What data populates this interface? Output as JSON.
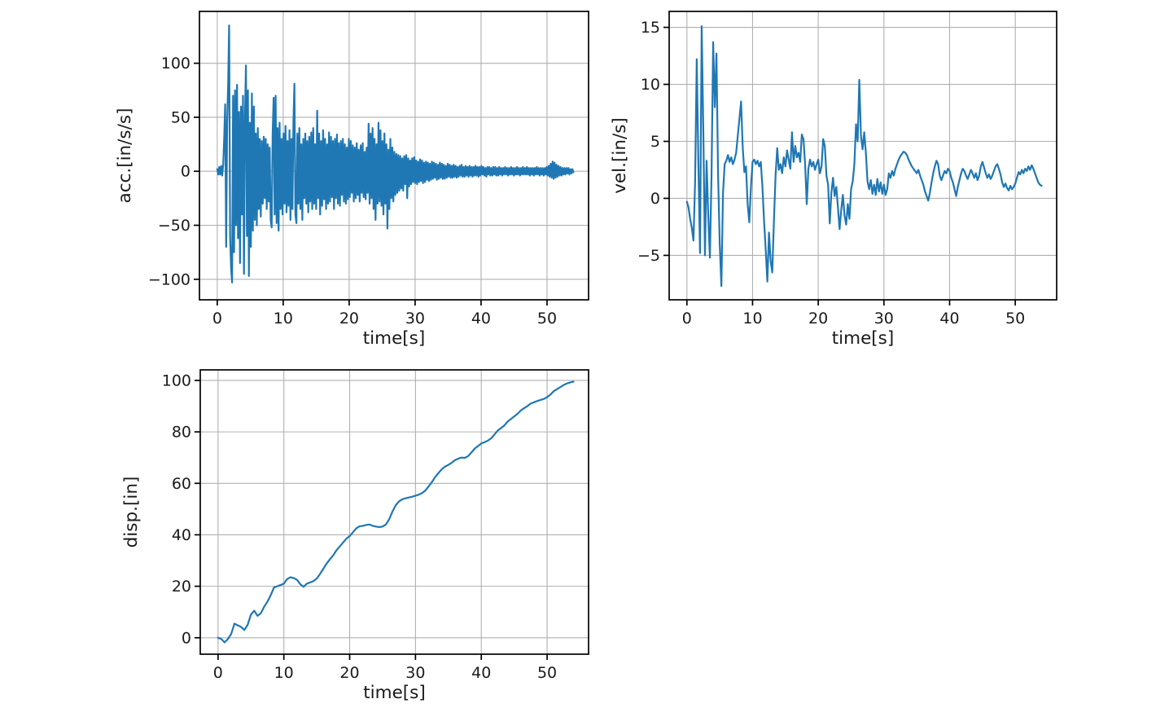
{
  "figure": {
    "background_color": "#ffffff",
    "text_color": "#1a1a1a"
  },
  "chart_data": [
    {
      "id": "acc",
      "type": "line",
      "title": "",
      "xlabel": "time[s]",
      "ylabel": "acc.[in/s/s]",
      "xlim": [
        -2.7,
        56.3
      ],
      "ylim": [
        -119,
        148
      ],
      "xticks": [
        0,
        10,
        20,
        30,
        40,
        50
      ],
      "yticks": [
        -100,
        -50,
        0,
        50,
        100
      ],
      "grid": true,
      "legend": "none",
      "line_color": "#1f77b4",
      "grid_color": "#b0b0b0",
      "spine_color": "#000000",
      "x_start": 0,
      "x_step": 0.15,
      "y": [
        2,
        -3,
        4,
        -3,
        5,
        -4,
        6,
        30,
        62,
        -70,
        45,
        80,
        135,
        -60,
        -90,
        -103,
        70,
        -75,
        75,
        -50,
        80,
        -62,
        55,
        -85,
        60,
        -40,
        70,
        -95,
        50,
        98,
        -60,
        75,
        -97,
        45,
        -70,
        72,
        -55,
        60,
        -45,
        35,
        -50,
        40,
        -35,
        30,
        -42,
        28,
        -30,
        32,
        -25,
        30,
        -35,
        25,
        -28,
        22,
        -45,
        -52,
        35,
        68,
        -40,
        70,
        -48,
        40,
        -55,
        45,
        -35,
        30,
        -40,
        35,
        -30,
        42,
        -38,
        28,
        -32,
        38,
        -45,
        30,
        -35,
        45,
        81,
        -40,
        -48,
        35,
        -30,
        40,
        -35,
        25,
        -45,
        30,
        -25,
        35,
        -30,
        28,
        -38,
        32,
        -28,
        36,
        -35,
        40,
        -30,
        25,
        -35,
        56,
        -25,
        35,
        -40,
        28,
        -32,
        38,
        -26,
        30,
        -35,
        25,
        -30,
        36,
        -28,
        32,
        -24,
        28,
        -35,
        30,
        -25,
        34,
        -30,
        26,
        -32,
        28,
        -22,
        30,
        -28,
        25,
        -30,
        22,
        -26,
        30,
        -24,
        28,
        -20,
        24,
        -28,
        22,
        -25,
        26,
        -22,
        20,
        -28,
        24,
        -20,
        26,
        -24,
        18,
        -26,
        22,
        -20,
        44,
        -30,
        35,
        -25,
        40,
        -35,
        30,
        -45,
        25,
        -30,
        45,
        -28,
        38,
        -32,
        28,
        -40,
        35,
        -30,
        25,
        -53,
        20,
        -35,
        30,
        -25,
        22,
        -28,
        18,
        -22,
        16,
        -20,
        15,
        -18,
        14,
        -16,
        12,
        -18,
        14,
        -12,
        15,
        -25,
        12,
        -14,
        10,
        -12,
        12,
        -10,
        13,
        -11,
        10,
        -12,
        9,
        -10,
        11,
        -9,
        10,
        -11,
        8,
        -10,
        9,
        -8,
        8,
        -9,
        7,
        -8,
        9,
        -7,
        8,
        -6,
        7,
        -8,
        6,
        -7,
        8,
        -6,
        7,
        -7,
        6,
        -7,
        5,
        -6,
        7,
        -5,
        6,
        -6,
        5,
        -6,
        6,
        -5,
        5,
        -6,
        4,
        -5,
        5,
        -4,
        6,
        -5,
        4,
        -5,
        5,
        -4,
        4,
        -5,
        5,
        -4,
        4,
        -5,
        4,
        -4,
        5,
        -4,
        4,
        -5,
        4,
        -4,
        5,
        -3,
        4,
        -4,
        3,
        -5,
        4,
        -3,
        4,
        -4,
        3,
        -4,
        4,
        -3,
        4,
        -4,
        3,
        -4,
        4,
        -3,
        3,
        -4,
        3,
        -3,
        4,
        -3,
        3,
        -4,
        3,
        -3,
        4,
        -3,
        3,
        -4,
        3,
        -3,
        4,
        -3,
        3,
        -4,
        3,
        -3,
        4,
        -3,
        3,
        -3,
        4,
        -3,
        3,
        -4,
        3,
        -3,
        3,
        -4,
        3,
        -3,
        4,
        -3,
        3,
        -4,
        3,
        -3,
        3,
        -4,
        3,
        -3,
        4,
        -4,
        5,
        -5,
        7,
        -6,
        9,
        -7,
        8,
        -6,
        6,
        -5,
        5,
        -4,
        4,
        -4,
        3,
        -3,
        3,
        -3,
        3,
        -2,
        3,
        -3,
        2,
        -2,
        2,
        -1
      ]
    },
    {
      "id": "vel",
      "type": "line",
      "title": "",
      "xlabel": "time[s]",
      "ylabel": "vel.[in/s]",
      "xlim": [
        -2.7,
        56.3
      ],
      "ylim": [
        -8.9,
        16.4
      ],
      "xticks": [
        0,
        10,
        20,
        30,
        40,
        50
      ],
      "yticks": [
        -5,
        0,
        5,
        10,
        15
      ],
      "grid": true,
      "legend": "none",
      "line_color": "#1f77b4",
      "grid_color": "#b0b0b0",
      "spine_color": "#000000",
      "x_start": 0,
      "x_step": 0.25,
      "y": [
        -0.3,
        -0.8,
        -1.8,
        -2.6,
        -3.7,
        1.5,
        12.2,
        3.0,
        -4.8,
        15.1,
        6.0,
        -5.0,
        3.3,
        -1.5,
        -5.2,
        2.0,
        13.7,
        8.0,
        12.7,
        2.0,
        -4.0,
        -7.7,
        0.5,
        3.0,
        3.3,
        3.8,
        3.2,
        3.6,
        3.0,
        3.4,
        4.0,
        5.5,
        7.0,
        8.5,
        4.5,
        2.3,
        2.8,
        -0.5,
        -2.1,
        1.0,
        3.2,
        3.4,
        3.0,
        3.3,
        2.8,
        3.2,
        1.0,
        -2.0,
        -4.5,
        -7.3,
        -3.0,
        -5.5,
        -6.5,
        -2.0,
        2.0,
        4.4,
        2.5,
        3.0,
        2.2,
        3.6,
        2.8,
        4.2,
        3.4,
        2.6,
        5.8,
        3.2,
        4.6,
        3.6,
        4.0,
        3.2,
        5.6,
        5.2,
        3.0,
        -0.5,
        2.6,
        3.4,
        2.8,
        3.2,
        2.5,
        3.0,
        3.4,
        2.2,
        2.8,
        5.2,
        4.6,
        2.0,
        1.2,
        -2.2,
        0.5,
        1.8,
        0.2,
        1.0,
        -0.8,
        -2.7,
        -1.0,
        0.3,
        -1.5,
        -2.3,
        -0.5,
        -1.8,
        0.8,
        1.5,
        3.0,
        6.5,
        5.0,
        10.4,
        5.5,
        4.3,
        5.8,
        4.0,
        1.5,
        0.8,
        1.6,
        0.4,
        1.2,
        0.3,
        1.7,
        0.6,
        1.4,
        0.4,
        1.2,
        0.3,
        0.8,
        2.2,
        1.8,
        2.4,
        2.0,
        2.6,
        3.0,
        3.4,
        3.7,
        3.9,
        4.1,
        4.0,
        3.8,
        3.4,
        3.1,
        2.8,
        2.6,
        2.4,
        2.2,
        2.5,
        2.0,
        1.6,
        1.2,
        0.6,
        0.2,
        -0.2,
        0.5,
        1.4,
        2.2,
        2.8,
        3.3,
        3.0,
        2.0,
        1.6,
        2.0,
        2.4,
        2.2,
        2.6,
        2.4,
        1.8,
        1.4,
        0.8,
        0.2,
        1.0,
        1.6,
        2.2,
        2.6,
        2.4,
        2.0,
        1.7,
        2.1,
        2.5,
        2.2,
        1.8,
        2.2,
        1.6,
        2.0,
        2.8,
        3.2,
        2.7,
        2.2,
        1.8,
        2.1,
        1.7,
        2.0,
        2.4,
        2.8,
        3.0,
        2.6,
        2.1,
        1.4,
        1.0,
        1.3,
        0.9,
        0.7,
        1.1,
        0.8,
        1.0,
        1.3,
        1.8,
        2.3,
        2.1,
        2.5,
        2.2,
        2.6,
        2.4,
        2.8,
        2.5,
        2.9,
        2.6,
        2.2,
        1.8,
        1.4,
        1.2,
        1.1
      ]
    },
    {
      "id": "disp",
      "type": "line",
      "title": "",
      "xlabel": "time[s]",
      "ylabel": "disp.[in]",
      "xlim": [
        -2.7,
        56.3
      ],
      "ylim": [
        -6.4,
        104.1
      ],
      "xticks": [
        0,
        10,
        20,
        30,
        40,
        50
      ],
      "yticks": [
        0,
        20,
        40,
        60,
        80,
        100
      ],
      "grid": true,
      "legend": "none",
      "line_color": "#1f77b4",
      "grid_color": "#b0b0b0",
      "spine_color": "#000000",
      "x_start": 0,
      "x_step": 0.5,
      "y": [
        0,
        -0.5,
        -1.8,
        -0.5,
        1.5,
        5.5,
        4.8,
        4.2,
        3.0,
        5.0,
        9.0,
        10.5,
        8.5,
        9.5,
        12.0,
        14.0,
        16.5,
        19.5,
        20.0,
        20.5,
        21.0,
        22.8,
        23.5,
        23.2,
        22.5,
        20.8,
        19.8,
        21.0,
        21.5,
        22.0,
        23.0,
        24.8,
        26.8,
        28.8,
        30.5,
        32.0,
        34.0,
        35.5,
        37.0,
        38.5,
        39.5,
        41.0,
        42.5,
        43.3,
        43.5,
        43.8,
        44.0,
        43.5,
        43.2,
        43.0,
        43.2,
        44.0,
        46.0,
        49.0,
        51.5,
        53.0,
        53.8,
        54.2,
        54.5,
        54.8,
        55.2,
        55.6,
        56.2,
        57.2,
        58.8,
        60.5,
        62.5,
        64.0,
        65.5,
        66.5,
        67.2,
        68.0,
        69.0,
        69.6,
        70.0,
        69.9,
        70.6,
        72.0,
        73.5,
        74.5,
        75.5,
        76.0,
        76.6,
        77.5,
        79.0,
        80.5,
        81.5,
        82.5,
        84.0,
        85.0,
        86.0,
        87.0,
        88.3,
        89.2,
        90.0,
        91.0,
        91.5,
        92.0,
        92.4,
        92.8,
        93.5,
        94.5,
        95.8,
        96.6,
        97.4,
        98.2,
        98.8,
        99.2,
        99.5
      ]
    }
  ]
}
